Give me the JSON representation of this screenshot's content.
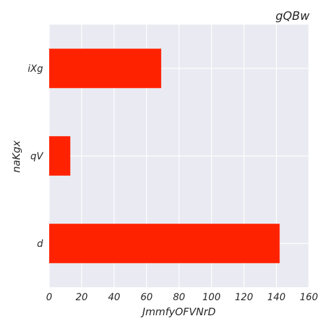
{
  "colors": {
    "bar": "#ff2200",
    "plot_background": "#eaeaf2",
    "grid": "#ffffff",
    "text": "#262626"
  },
  "chart_data": {
    "type": "bar",
    "orientation": "horizontal",
    "title": "gQBw",
    "xlabel": "JmmfyOFVNrD",
    "ylabel": "naKgx",
    "categories": [
      "d",
      "qV",
      "iXg"
    ],
    "values": [
      142,
      13,
      69
    ],
    "xlim": [
      0,
      160
    ],
    "xticks": [
      "0",
      "20",
      "40",
      "60",
      "80",
      "100",
      "120",
      "140",
      "160"
    ],
    "grid": true,
    "legend": "none"
  }
}
